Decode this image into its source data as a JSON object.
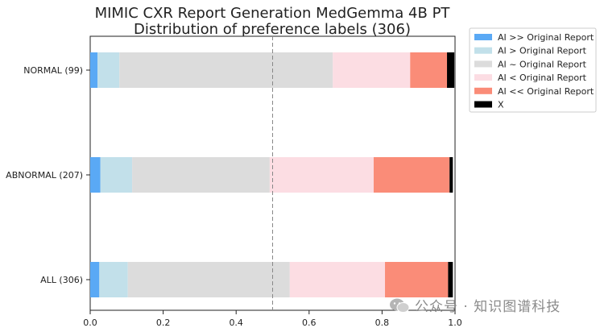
{
  "chart_data": {
    "type": "bar",
    "orientation": "horizontal",
    "stacked": true,
    "title": [
      "MIMIC CXR Report Generation MedGemma 4B PT",
      "Distribution of preference labels (306)"
    ],
    "categories": [
      "NORMAL (99)",
      "ABNORMAL (207)",
      "ALL (306)"
    ],
    "series": [
      {
        "name": "AI >> Original Report",
        "color": "#5aa9f5",
        "values": [
          0.02,
          0.028,
          0.025
        ]
      },
      {
        "name": "AI > Original Report",
        "color": "#c2e0ea",
        "values": [
          0.06,
          0.087,
          0.078
        ]
      },
      {
        "name": "AI ~ Original Report",
        "color": "#dcdcdc",
        "values": [
          0.585,
          0.377,
          0.444
        ]
      },
      {
        "name": "AI < Original Report",
        "color": "#fcdde3",
        "values": [
          0.212,
          0.285,
          0.261
        ]
      },
      {
        "name": "AI << Original Report",
        "color": "#fa8c78",
        "values": [
          0.101,
          0.208,
          0.173
        ]
      },
      {
        "name": "X",
        "color": "#000000",
        "values": [
          0.02,
          0.009,
          0.013
        ]
      }
    ],
    "xlim": [
      0,
      1
    ],
    "xticks": [
      "0.0",
      "0.2",
      "0.4",
      "0.6",
      "0.8",
      "1.0"
    ],
    "reference_line": 0.5,
    "legend": "outside-top-right",
    "grid": false
  },
  "watermark": "公众号 · 知识图谱科技"
}
